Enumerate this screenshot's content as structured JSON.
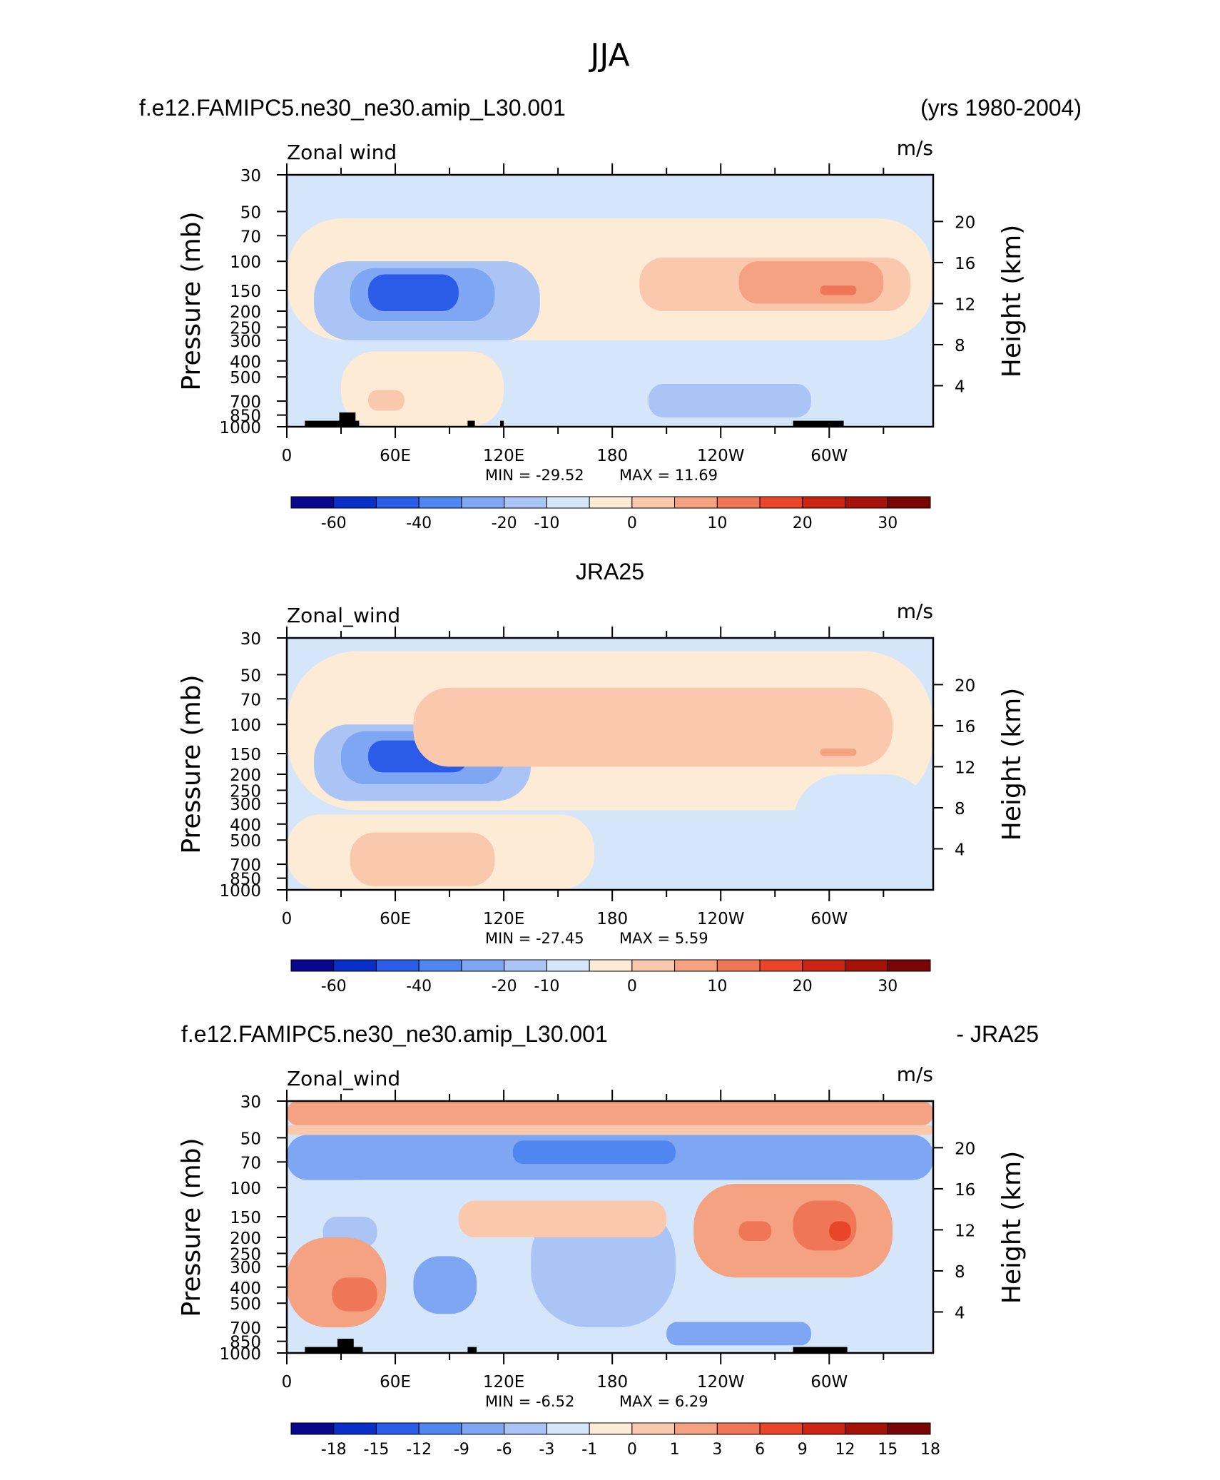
{
  "page": {
    "title": "JJA"
  },
  "colors": {
    "panel_scale": [
      "#08088c",
      "#0a2fc8",
      "#2b5ce8",
      "#4f86f0",
      "#7ea6f2",
      "#aac4f5",
      "#d6e6fa",
      "#fdebd6",
      "#f9c8ad",
      "#f4a282",
      "#ef7656",
      "#e8452b",
      "#cc2412",
      "#a4120a",
      "#7a0505"
    ],
    "diff_scale": [
      "#08088c",
      "#0a2fc8",
      "#2b5ce8",
      "#4f86f0",
      "#7ea6f2",
      "#aac4f5",
      "#d6e6fa",
      "#fdebd6",
      "#f9c8ad",
      "#f4a282",
      "#ef7656",
      "#e8452b",
      "#cc2412",
      "#a4120a",
      "#7a0505"
    ],
    "topography": "#000000"
  },
  "chart_data": [
    {
      "type": "heatmap",
      "title_left": "f.e12.FAMIPC5.ne30_ne30.amip_L30.001",
      "title_center": "",
      "title_right": "(yrs 1980-2004)",
      "variable": "Zonal wind",
      "units": "m/s",
      "ylabel": "Pressure (mb)",
      "ylabel_right": "Height (km)",
      "yticks": [
        "30",
        "50",
        "70",
        "100",
        "150",
        "200",
        "250",
        "300",
        "400",
        "500",
        "700",
        "850",
        "1000"
      ],
      "ytick_values": [
        30,
        50,
        70,
        100,
        150,
        200,
        250,
        300,
        400,
        500,
        700,
        850,
        1000
      ],
      "yticks_right": [
        "20",
        "16",
        "12",
        "8",
        "4"
      ],
      "xticks": [
        "0",
        "60E",
        "120E",
        "180",
        "120W",
        "60W"
      ],
      "xtick_values": [
        0,
        60,
        120,
        180,
        240,
        300
      ],
      "xlim": [
        0,
        357.5
      ],
      "ylim": [
        1000,
        30
      ],
      "min_label": "MIN = -29.52",
      "max_label": "MAX = 11.69",
      "colorbar_labels": [
        "-60",
        "-40",
        "-20",
        "-10",
        "0",
        "10",
        "20",
        "30"
      ],
      "colorbar_levels": [
        -70,
        -60,
        -50,
        -40,
        -30,
        -20,
        -15,
        -10,
        -5,
        0,
        5,
        10,
        15,
        20,
        25,
        30
      ],
      "regions": [
        {
          "level_index": 7,
          "lon": [
            0,
            357.5
          ],
          "p": [
            55,
            300
          ]
        },
        {
          "level_index": 5,
          "lon": [
            15,
            140
          ],
          "p": [
            100,
            300
          ]
        },
        {
          "level_index": 4,
          "lon": [
            35,
            115
          ],
          "p": [
            110,
            230
          ]
        },
        {
          "level_index": 2,
          "lon": [
            45,
            95
          ],
          "p": [
            120,
            200
          ]
        },
        {
          "level_index": 8,
          "lon": [
            195,
            345
          ],
          "p": [
            95,
            200
          ]
        },
        {
          "level_index": 9,
          "lon": [
            250,
            330
          ],
          "p": [
            100,
            180
          ]
        },
        {
          "level_index": 10,
          "lon": [
            295,
            315
          ],
          "p": [
            140,
            160
          ]
        },
        {
          "level_index": 7,
          "lon": [
            30,
            120
          ],
          "p": [
            350,
            1000
          ]
        },
        {
          "level_index": 8,
          "lon": [
            45,
            65
          ],
          "p": [
            600,
            800
          ]
        },
        {
          "level_index": 5,
          "lon": [
            200,
            290
          ],
          "p": [
            550,
            880
          ]
        }
      ],
      "topography": [
        {
          "lon": [
            10,
            40
          ],
          "p": [
            920,
            1000
          ]
        },
        {
          "lon": [
            29,
            38
          ],
          "p": [
            820,
            1000
          ]
        },
        {
          "lon": [
            100,
            104
          ],
          "p": [
            920,
            1000
          ]
        },
        {
          "lon": [
            118,
            120
          ],
          "p": [
            920,
            1000
          ]
        },
        {
          "lon": [
            280,
            308
          ],
          "p": [
            920,
            1000
          ]
        }
      ]
    },
    {
      "type": "heatmap",
      "title_left": "",
      "title_center": "JRA25",
      "title_right": "",
      "variable": "Zonal_wind",
      "units": "m/s",
      "ylabel": "Pressure (mb)",
      "ylabel_right": "Height (km)",
      "yticks": [
        "30",
        "50",
        "70",
        "100",
        "150",
        "200",
        "250",
        "300",
        "400",
        "500",
        "700",
        "850",
        "1000"
      ],
      "ytick_values": [
        30,
        50,
        70,
        100,
        150,
        200,
        250,
        300,
        400,
        500,
        700,
        850,
        1000
      ],
      "yticks_right": [
        "20",
        "16",
        "12",
        "8",
        "4"
      ],
      "xticks": [
        "0",
        "60E",
        "120E",
        "180",
        "120W",
        "60W"
      ],
      "xtick_values": [
        0,
        60,
        120,
        180,
        240,
        300
      ],
      "xlim": [
        0,
        357.5
      ],
      "ylim": [
        1000,
        30
      ],
      "min_label": "MIN = -27.45",
      "max_label": "MAX = 5.59",
      "colorbar_labels": [
        "-60",
        "-40",
        "-20",
        "-10",
        "0",
        "10",
        "20",
        "30"
      ],
      "colorbar_levels": [
        -70,
        -60,
        -50,
        -40,
        -30,
        -20,
        -15,
        -10,
        -5,
        0,
        5,
        10,
        15,
        20,
        25,
        30
      ],
      "regions": [
        {
          "level_index": 7,
          "lon": [
            0,
            357.5
          ],
          "p": [
            36,
            330
          ]
        },
        {
          "level_index": 5,
          "lon": [
            15,
            135
          ],
          "p": [
            100,
            290
          ]
        },
        {
          "level_index": 4,
          "lon": [
            30,
            120
          ],
          "p": [
            110,
            230
          ]
        },
        {
          "level_index": 2,
          "lon": [
            45,
            100
          ],
          "p": [
            125,
            195
          ]
        },
        {
          "level_index": 8,
          "lon": [
            70,
            335
          ],
          "p": [
            60,
            180
          ]
        },
        {
          "level_index": 9,
          "lon": [
            295,
            315
          ],
          "p": [
            140,
            155
          ]
        },
        {
          "level_index": 7,
          "lon": [
            0,
            170
          ],
          "p": [
            350,
            1000
          ]
        },
        {
          "level_index": 8,
          "lon": [
            35,
            115
          ],
          "p": [
            450,
            950
          ]
        },
        {
          "level_index": 6,
          "lon": [
            280,
            357.5
          ],
          "p": [
            200,
            900
          ]
        }
      ],
      "topography": []
    },
    {
      "type": "heatmap",
      "title_left": "f.e12.FAMIPC5.ne30_ne30.amip_L30.001",
      "title_center": "",
      "title_right": "- JRA25",
      "variable": "Zonal_wind",
      "units": "m/s",
      "ylabel": "Pressure (mb)",
      "ylabel_right": "Height (km)",
      "yticks": [
        "30",
        "50",
        "70",
        "100",
        "150",
        "200",
        "250",
        "300",
        "400",
        "500",
        "700",
        "850",
        "1000"
      ],
      "ytick_values": [
        30,
        50,
        70,
        100,
        150,
        200,
        250,
        300,
        400,
        500,
        700,
        850,
        1000
      ],
      "yticks_right": [
        "20",
        "16",
        "12",
        "8",
        "4"
      ],
      "xticks": [
        "0",
        "60E",
        "120E",
        "180",
        "120W",
        "60W"
      ],
      "xtick_values": [
        0,
        60,
        120,
        180,
        240,
        300
      ],
      "xlim": [
        0,
        357.5
      ],
      "ylim": [
        1000,
        30
      ],
      "min_label": "MIN = -6.52",
      "max_label": "MAX = 6.29",
      "colorbar_labels": [
        "-18",
        "-15",
        "-12",
        "-9",
        "-6",
        "-3",
        "-1",
        "0",
        "1",
        "3",
        "6",
        "9",
        "12",
        "15",
        "18"
      ],
      "colorbar_levels": [
        -21,
        -18,
        -15,
        -12,
        -9,
        -6,
        -3,
        -1,
        0,
        1,
        3,
        6,
        9,
        12,
        15,
        18,
        21
      ],
      "regions": [
        {
          "level_index": 9,
          "lon": [
            0,
            357.5
          ],
          "p": [
            30,
            42
          ]
        },
        {
          "level_index": 8,
          "lon": [
            0,
            357.5
          ],
          "p": [
            42,
            48
          ]
        },
        {
          "level_index": 4,
          "lon": [
            0,
            357.5
          ],
          "p": [
            48,
            90
          ]
        },
        {
          "level_index": 3,
          "lon": [
            125,
            215
          ],
          "p": [
            52,
            72
          ]
        },
        {
          "level_index": 6,
          "lon": [
            0,
            357.5
          ],
          "p": [
            90,
            1000
          ]
        },
        {
          "level_index": 5,
          "lon": [
            135,
            215
          ],
          "p": [
            120,
            700
          ]
        },
        {
          "level_index": 5,
          "lon": [
            20,
            50
          ],
          "p": [
            150,
            230
          ]
        },
        {
          "level_index": 4,
          "lon": [
            70,
            105
          ],
          "p": [
            260,
            580
          ]
        },
        {
          "level_index": 9,
          "lon": [
            0,
            55
          ],
          "p": [
            200,
            700
          ]
        },
        {
          "level_index": 10,
          "lon": [
            25,
            50
          ],
          "p": [
            350,
            560
          ]
        },
        {
          "level_index": 9,
          "lon": [
            225,
            335
          ],
          "p": [
            95,
            350
          ]
        },
        {
          "level_index": 10,
          "lon": [
            280,
            315
          ],
          "p": [
            120,
            240
          ]
        },
        {
          "level_index": 11,
          "lon": [
            300,
            312
          ],
          "p": [
            160,
            210
          ]
        },
        {
          "level_index": 10,
          "lon": [
            250,
            268
          ],
          "p": [
            160,
            210
          ]
        },
        {
          "level_index": 4,
          "lon": [
            210,
            290
          ],
          "p": [
            650,
            900
          ]
        },
        {
          "level_index": 8,
          "lon": [
            95,
            210
          ],
          "p": [
            120,
            200
          ]
        }
      ],
      "topography": [
        {
          "lon": [
            10,
            42
          ],
          "p": [
            920,
            1000
          ]
        },
        {
          "lon": [
            28,
            37
          ],
          "p": [
            820,
            1000
          ]
        },
        {
          "lon": [
            100,
            105
          ],
          "p": [
            920,
            1000
          ]
        },
        {
          "lon": [
            280,
            310
          ],
          "p": [
            920,
            1000
          ]
        }
      ]
    }
  ]
}
